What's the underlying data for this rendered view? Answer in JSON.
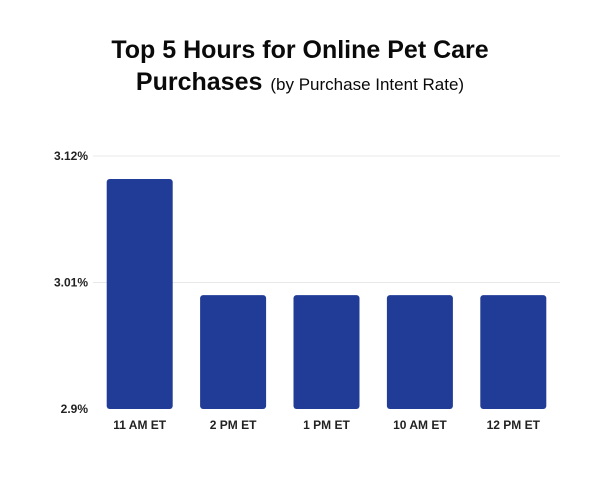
{
  "title": {
    "line1": "Top 5 Hours for Online Pet Care",
    "line2": "Purchases",
    "subtitle": "(by Purchase Intent Rate)"
  },
  "chart_data": {
    "type": "bar",
    "title": "Top 5 Hours for Online Pet Care Purchases",
    "subtitle": "(by Purchase Intent Rate)",
    "categories": [
      "11 AM ET",
      "2 PM ET",
      "1 PM ET",
      "10 AM ET",
      "12 PM ET"
    ],
    "values": [
      3.1,
      2.999,
      2.999,
      2.999,
      2.999
    ],
    "unit": "%",
    "ylim": [
      2.9,
      3.12
    ],
    "yticks": [
      "3.12%",
      "3.01%",
      "2.9%"
    ],
    "ytick_values": [
      3.12,
      3.01,
      2.9
    ],
    "grid": true,
    "bar_color": "#213c96",
    "grid_color": "#e8e8e8"
  }
}
